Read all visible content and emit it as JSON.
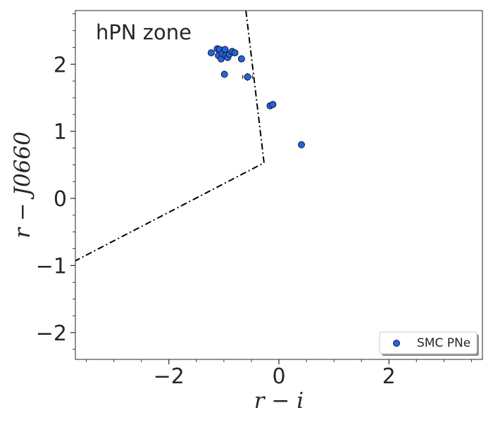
{
  "chart_data": {
    "type": "scatter",
    "title": "",
    "xlabel": "r − i",
    "ylabel": "r − J0660",
    "xlim": [
      -3.7,
      3.7
    ],
    "ylim": [
      -2.4,
      2.8
    ],
    "x_ticks": [
      -2,
      0,
      2
    ],
    "x_tick_labels": [
      "−2",
      "0",
      "2"
    ],
    "y_ticks": [
      -2,
      -1,
      0,
      1,
      2
    ],
    "y_tick_labels": [
      "−2",
      "−1",
      "0",
      "1",
      "2"
    ],
    "grid": false,
    "annotation": "hPN zone",
    "legend": {
      "position": "bottom-right",
      "entries": [
        "SMC PNe"
      ]
    },
    "series": [
      {
        "name": "SMC PNe",
        "color": "#2962d9",
        "edgecolor": "#0b1a3a",
        "points": [
          {
            "x": -1.23,
            "y": 2.17
          },
          {
            "x": -1.12,
            "y": 2.23
          },
          {
            "x": -1.08,
            "y": 2.22
          },
          {
            "x": -1.1,
            "y": 2.13
          },
          {
            "x": -1.05,
            "y": 2.08
          },
          {
            "x": -1.03,
            "y": 2.16
          },
          {
            "x": -0.98,
            "y": 2.22
          },
          {
            "x": -0.97,
            "y": 2.13
          },
          {
            "x": -0.93,
            "y": 2.1
          },
          {
            "x": -0.9,
            "y": 2.15
          },
          {
            "x": -0.85,
            "y": 2.19
          },
          {
            "x": -0.8,
            "y": 2.17
          },
          {
            "x": -0.68,
            "y": 2.08
          },
          {
            "x": -0.99,
            "y": 1.85
          },
          {
            "x": -0.57,
            "y": 1.81,
            "xerr": 0.09,
            "yerr": 0.06
          },
          {
            "x": -0.16,
            "y": 1.38
          },
          {
            "x": -0.11,
            "y": 1.4
          },
          {
            "x": 0.41,
            "y": 0.8
          }
        ]
      }
    ],
    "boundary_line": {
      "style": "dash-dot",
      "color": "#000000",
      "points": [
        [
          -0.6,
          2.8
        ],
        [
          -0.27,
          0.53
        ],
        [
          -3.7,
          -0.93
        ]
      ]
    }
  }
}
